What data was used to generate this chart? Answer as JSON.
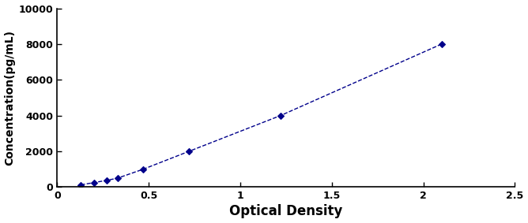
{
  "x": [
    0.13,
    0.2,
    0.27,
    0.33,
    0.47,
    0.72,
    1.22,
    2.1
  ],
  "y": [
    125,
    250,
    375,
    500,
    1000,
    2000,
    4000,
    8000
  ],
  "line_color": "#00008B",
  "marker": "D",
  "marker_color": "#00008B",
  "marker_size": 4,
  "line_width": 1.0,
  "line_style": "--",
  "xlabel": "Optical Density",
  "ylabel": "Concentration(pg/mL)",
  "xlim": [
    0,
    2.5
  ],
  "ylim": [
    0,
    10000
  ],
  "xticks": [
    0,
    0.5,
    1.0,
    1.5,
    2.0,
    2.5
  ],
  "yticks": [
    0,
    2000,
    4000,
    6000,
    8000,
    10000
  ],
  "xlabel_fontsize": 12,
  "ylabel_fontsize": 10,
  "tick_fontsize": 9,
  "background_color": "#ffffff"
}
